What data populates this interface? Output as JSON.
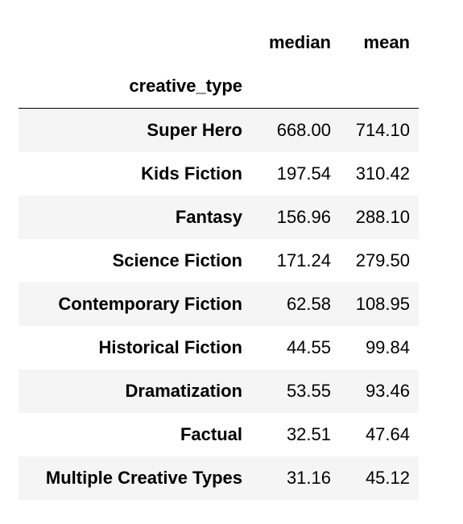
{
  "table": {
    "columns": [
      "median",
      "mean"
    ],
    "index_name": "creative_type",
    "rows": [
      {
        "label": "Super Hero",
        "median": "668.00",
        "mean": "714.10"
      },
      {
        "label": "Kids Fiction",
        "median": "197.54",
        "mean": "310.42"
      },
      {
        "label": "Fantasy",
        "median": "156.96",
        "mean": "288.10"
      },
      {
        "label": "Science Fiction",
        "median": "171.24",
        "mean": "279.50"
      },
      {
        "label": "Contemporary Fiction",
        "median": "62.58",
        "mean": "108.95"
      },
      {
        "label": "Historical Fiction",
        "median": "44.55",
        "mean": "99.84"
      },
      {
        "label": "Dramatization",
        "median": "53.55",
        "mean": "93.46"
      },
      {
        "label": "Factual",
        "median": "32.51",
        "mean": "47.64"
      },
      {
        "label": "Multiple Creative Types",
        "median": "31.16",
        "mean": "45.12"
      }
    ]
  }
}
